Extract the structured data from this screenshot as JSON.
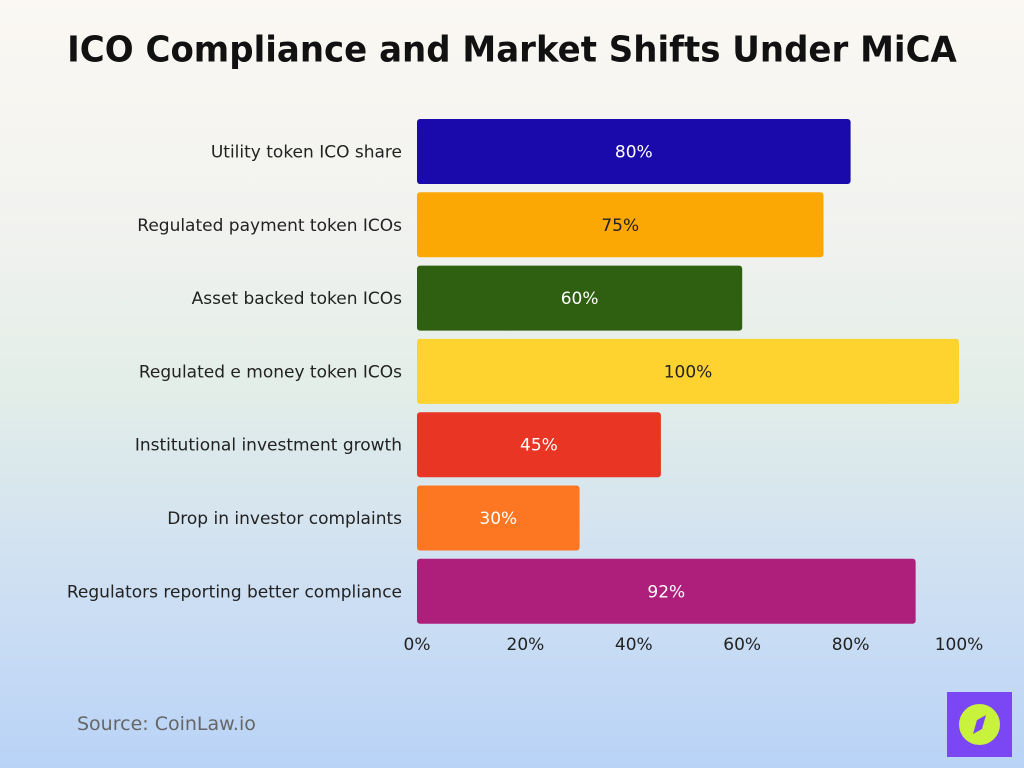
{
  "chart_data": {
    "type": "bar",
    "orientation": "horizontal",
    "title": "ICO Compliance and Market Shifts Under MiCA",
    "categories": [
      "Utility token ICO share",
      "Regulated payment token ICOs",
      "Asset backed token ICOs",
      "Regulated e money token ICOs",
      "Institutional investment growth",
      "Drop in investor complaints",
      "Regulators reporting better compliance"
    ],
    "values": [
      80,
      75,
      60,
      100,
      45,
      30,
      92
    ],
    "data_labels": [
      "80%",
      "75%",
      "60%",
      "100%",
      "45%",
      "30%",
      "92%"
    ],
    "colors": [
      "#1a0aab",
      "#fba804",
      "#2f5f10",
      "#fed330",
      "#e83524",
      "#fd7722",
      "#ad1f7a"
    ],
    "label_colors": [
      "#ffffff",
      "#222222",
      "#ffffff",
      "#222222",
      "#ffffff",
      "#ffffff",
      "#ffffff"
    ],
    "xlim": [
      0,
      100
    ],
    "xticks": [
      "0%",
      "20%",
      "40%",
      "60%",
      "80%",
      "100%"
    ],
    "xtick_values": [
      0,
      20,
      40,
      60,
      80,
      100
    ],
    "grid": false,
    "xlabel": "",
    "ylabel": ""
  },
  "source": "Source: CoinLaw.io",
  "logo": {
    "icon": "compass-icon",
    "colors": [
      "#7b47f5",
      "#c9f23c"
    ]
  }
}
